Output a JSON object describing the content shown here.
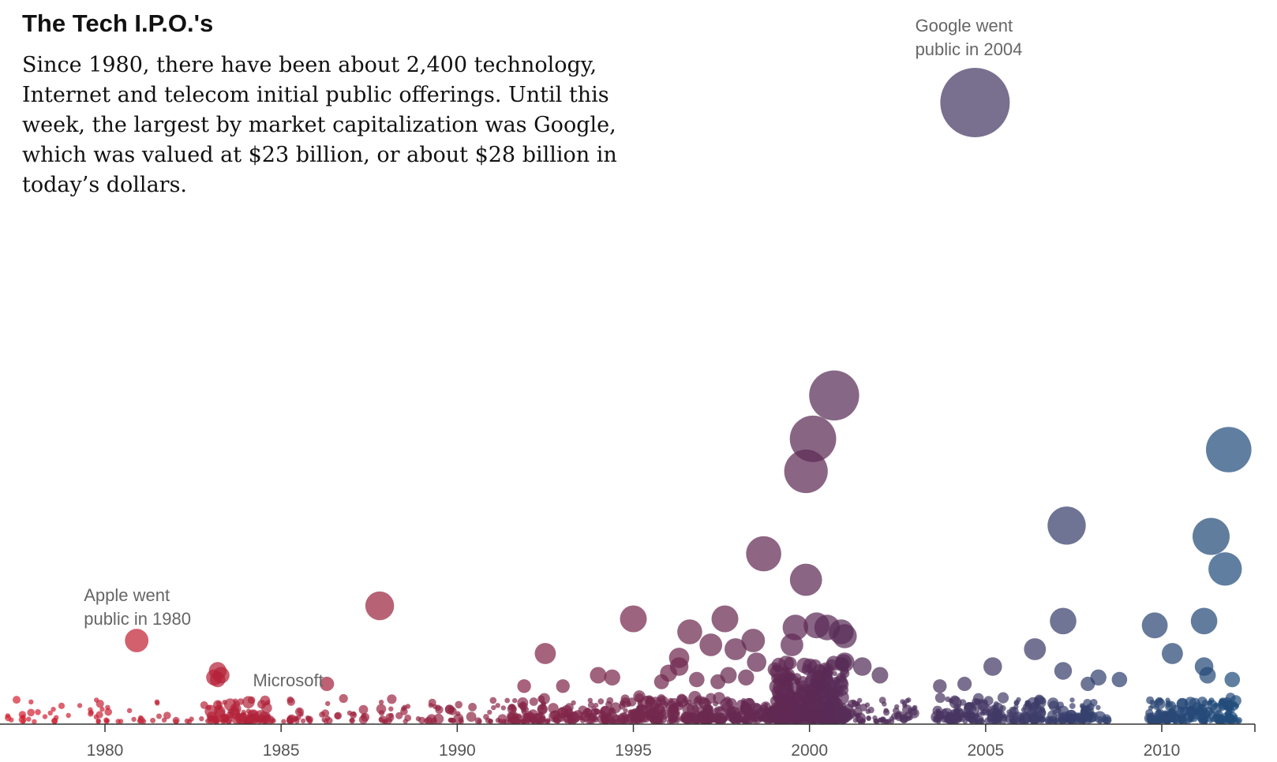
{
  "chart_data": {
    "type": "scatter",
    "title": "The Tech I.P.O.'s",
    "subtitle": "Since 1980, there have been about 2,400 technology, Internet and telecom initial public offerings. Until this week, the largest by market capitalization was Google, which was valued at $23 billion, or about $28 billion in today’s dollars.",
    "xlabel": "",
    "ylabel": "",
    "xlim": [
      1977,
      2012.5
    ],
    "x_ticks": [
      1980,
      1985,
      1990,
      1995,
      2000,
      2005,
      2010
    ],
    "colors": {
      "start": "#d7202f",
      "mid": "#5c2a55",
      "end": "#1f4e7d"
    },
    "annotations": [
      {
        "lines": [
          "Apple went",
          "public in 1980"
        ],
        "x": 1980.9,
        "label_x": 1979.4
      },
      {
        "lines": [
          "Microsoft"
        ],
        "x": 1986.3,
        "label_x": 1984.2
      },
      {
        "lines": [
          "Google went",
          "public in 2004"
        ],
        "x": 2004.6,
        "label_x": 2003.0
      }
    ],
    "points": [
      {
        "x": 2004.7,
        "cap": 28.0
      },
      {
        "x": 2000.7,
        "cap": 14.5
      },
      {
        "x": 2000.1,
        "cap": 12.5
      },
      {
        "x": 1999.9,
        "cap": 11.0
      },
      {
        "x": 2011.9,
        "cap": 12.0
      },
      {
        "x": 2007.3,
        "cap": 8.5
      },
      {
        "x": 2011.4,
        "cap": 8.0
      },
      {
        "x": 2011.8,
        "cap": 6.5
      },
      {
        "x": 1998.7,
        "cap": 7.2
      },
      {
        "x": 1999.9,
        "cap": 6.0
      },
      {
        "x": 1987.8,
        "cap": 4.8
      },
      {
        "x": 1980.9,
        "cap": 3.2
      },
      {
        "x": 1995.0,
        "cap": 4.2
      },
      {
        "x": 1997.6,
        "cap": 4.2
      },
      {
        "x": 1996.6,
        "cap": 3.6
      },
      {
        "x": 1999.6,
        "cap": 3.8
      },
      {
        "x": 2000.2,
        "cap": 3.9
      },
      {
        "x": 2000.5,
        "cap": 3.8
      },
      {
        "x": 2000.9,
        "cap": 3.6
      },
      {
        "x": 2001.0,
        "cap": 3.4
      },
      {
        "x": 2007.2,
        "cap": 4.1
      },
      {
        "x": 2009.8,
        "cap": 3.9
      },
      {
        "x": 2011.2,
        "cap": 4.1
      },
      {
        "x": 1998.4,
        "cap": 3.2
      },
      {
        "x": 1997.2,
        "cap": 3.0
      },
      {
        "x": 1997.9,
        "cap": 2.8
      },
      {
        "x": 1999.5,
        "cap": 3.0
      },
      {
        "x": 2006.4,
        "cap": 2.8
      },
      {
        "x": 2010.3,
        "cap": 2.6
      },
      {
        "x": 1992.5,
        "cap": 2.6
      },
      {
        "x": 1996.3,
        "cap": 2.4
      },
      {
        "x": 1996.3,
        "cap": 2.0
      },
      {
        "x": 1998.5,
        "cap": 2.2
      },
      {
        "x": 2001.0,
        "cap": 2.2
      },
      {
        "x": 2001.5,
        "cap": 2.0
      },
      {
        "x": 2005.2,
        "cap": 2.0
      },
      {
        "x": 2007.2,
        "cap": 1.8
      },
      {
        "x": 2011.2,
        "cap": 2.0
      },
      {
        "x": 2011.3,
        "cap": 1.6
      },
      {
        "x": 1983.2,
        "cap": 1.8
      },
      {
        "x": 1983.3,
        "cap": 1.6
      },
      {
        "x": 1983.2,
        "cap": 1.4
      },
      {
        "x": 1983.1,
        "cap": 1.5
      },
      {
        "x": 1994.0,
        "cap": 1.6
      },
      {
        "x": 1994.4,
        "cap": 1.5
      },
      {
        "x": 1996.0,
        "cap": 1.7
      },
      {
        "x": 1997.7,
        "cap": 1.6
      },
      {
        "x": 1998.2,
        "cap": 1.5
      },
      {
        "x": 2002.0,
        "cap": 1.6
      },
      {
        "x": 2008.2,
        "cap": 1.5
      },
      {
        "x": 2008.8,
        "cap": 1.4
      },
      {
        "x": 2012.0,
        "cap": 1.4
      },
      {
        "x": 1986.3,
        "cap": 1.2
      },
      {
        "x": 1991.9,
        "cap": 1.1
      },
      {
        "x": 1993.0,
        "cap": 1.1
      },
      {
        "x": 1995.8,
        "cap": 1.3
      },
      {
        "x": 1996.8,
        "cap": 1.4
      },
      {
        "x": 1997.4,
        "cap": 1.3
      },
      {
        "x": 2004.4,
        "cap": 1.2
      },
      {
        "x": 2003.7,
        "cap": 1.1
      },
      {
        "x": 2007.9,
        "cap": 1.2
      }
    ],
    "small_points_note": "Small points rendered from generator below",
    "dense_bands": [
      {
        "from": 1977.2,
        "to": 1983.0,
        "count": 60,
        "max_cap": 0.35
      },
      {
        "from": 1983.0,
        "to": 1984.6,
        "count": 90,
        "max_cap": 0.9
      },
      {
        "from": 1984.6,
        "to": 1991.5,
        "count": 110,
        "max_cap": 0.6
      },
      {
        "from": 1991.5,
        "to": 1995.0,
        "count": 150,
        "max_cap": 0.8
      },
      {
        "from": 1995.0,
        "to": 1999.0,
        "count": 300,
        "max_cap": 1.0
      },
      {
        "from": 1999.0,
        "to": 2001.0,
        "count": 420,
        "max_cap": 1.6
      },
      {
        "from": 2001.0,
        "to": 2003.0,
        "count": 70,
        "max_cap": 0.6
      },
      {
        "from": 2003.6,
        "to": 2008.5,
        "count": 260,
        "max_cap": 0.9
      },
      {
        "from": 2009.6,
        "to": 2012.2,
        "count": 190,
        "max_cap": 0.8
      }
    ]
  }
}
